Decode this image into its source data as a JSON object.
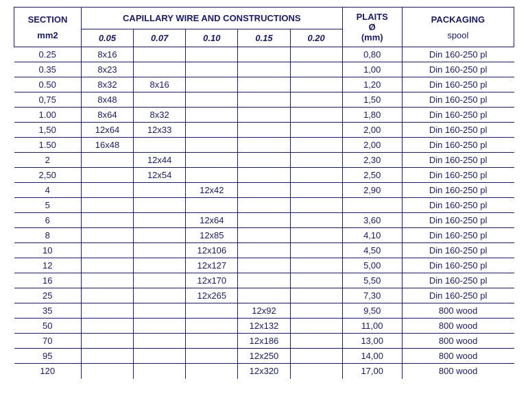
{
  "headers": {
    "section": "SECTION",
    "section_unit": "mm2",
    "capillary": "CAPILLARY WIRE AND CONSTRUCTIONS",
    "plaits": "PLAITS",
    "plaits_symbol": "Ø",
    "plaits_unit": "(mm)",
    "packaging": "PACKAGING",
    "packaging_sub": "spool",
    "cap_cols": [
      "0.05",
      "0.07",
      "0.10",
      "0.15",
      "0.20"
    ]
  },
  "rows": [
    {
      "section": "0.25",
      "c": [
        "8x16",
        "",
        "",
        "",
        ""
      ],
      "plaits": "0,80",
      "pack": "Din 160-250 pl"
    },
    {
      "section": "0.35",
      "c": [
        "8x23",
        "",
        "",
        "",
        ""
      ],
      "plaits": "1,00",
      "pack": "Din 160-250 pl"
    },
    {
      "section": "0.50",
      "c": [
        "8x32",
        "8x16",
        "",
        "",
        ""
      ],
      "plaits": "1,20",
      "pack": "Din 160-250 pl"
    },
    {
      "section": "0,75",
      "c": [
        "8x48",
        "",
        "",
        "",
        ""
      ],
      "plaits": "1,50",
      "pack": "Din 160-250 pl"
    },
    {
      "section": "1.00",
      "c": [
        "8x64",
        "8x32",
        "",
        "",
        ""
      ],
      "plaits": "1,80",
      "pack": "Din 160-250 pl"
    },
    {
      "section": "1,50",
      "c": [
        "12x64",
        "12x33",
        "",
        "",
        ""
      ],
      "plaits": "2,00",
      "pack": "Din 160-250 pl"
    },
    {
      "section": "1.50",
      "c": [
        "16x48",
        "",
        "",
        "",
        ""
      ],
      "plaits": "2,00",
      "pack": "Din 160-250 pl"
    },
    {
      "section": "2",
      "c": [
        "",
        "12x44",
        "",
        "",
        ""
      ],
      "plaits": "2,30",
      "pack": "Din 160-250 pl"
    },
    {
      "section": "2,50",
      "c": [
        "",
        "12x54",
        "",
        "",
        ""
      ],
      "plaits": "2,50",
      "pack": "Din 160-250 pl"
    },
    {
      "section": "4",
      "c": [
        "",
        "",
        "12x42",
        "",
        ""
      ],
      "plaits": "2,90",
      "pack": "Din 160-250 pl"
    },
    {
      "section": "5",
      "c": [
        "",
        "",
        "",
        "",
        ""
      ],
      "plaits": "",
      "pack": "Din 160-250 pl"
    },
    {
      "section": "6",
      "c": [
        "",
        "",
        "12x64",
        "",
        ""
      ],
      "plaits": "3,60",
      "pack": "Din 160-250 pl"
    },
    {
      "section": "8",
      "c": [
        "",
        "",
        "12x85",
        "",
        ""
      ],
      "plaits": "4,10",
      "pack": "Din 160-250 pl"
    },
    {
      "section": "10",
      "c": [
        "",
        "",
        "12x106",
        "",
        ""
      ],
      "plaits": "4,50",
      "pack": "Din 160-250 pl"
    },
    {
      "section": "12",
      "c": [
        "",
        "",
        "12x127",
        "",
        ""
      ],
      "plaits": "5,00",
      "pack": "Din 160-250 pl"
    },
    {
      "section": "16",
      "c": [
        "",
        "",
        "12x170",
        "",
        ""
      ],
      "plaits": "5,50",
      "pack": "Din 160-250 pl"
    },
    {
      "section": "25",
      "c": [
        "",
        "",
        "12x265",
        "",
        ""
      ],
      "plaits": "7,30",
      "pack": "Din 160-250 pl"
    },
    {
      "section": "35",
      "c": [
        "",
        "",
        "",
        "12x92",
        ""
      ],
      "plaits": "9,50",
      "pack": "800 wood"
    },
    {
      "section": "50",
      "c": [
        "",
        "",
        "",
        "12x132",
        ""
      ],
      "plaits": "11,00",
      "pack": "800 wood"
    },
    {
      "section": "70",
      "c": [
        "",
        "",
        "",
        "12x186",
        ""
      ],
      "plaits": "13,00",
      "pack": "800 wood"
    },
    {
      "section": "95",
      "c": [
        "",
        "",
        "",
        "12x250",
        ""
      ],
      "plaits": "14,00",
      "pack": "800 wood"
    },
    {
      "section": "120",
      "c": [
        "",
        "",
        "",
        "12x320",
        ""
      ],
      "plaits": "17,00",
      "pack": "800 wood"
    }
  ]
}
